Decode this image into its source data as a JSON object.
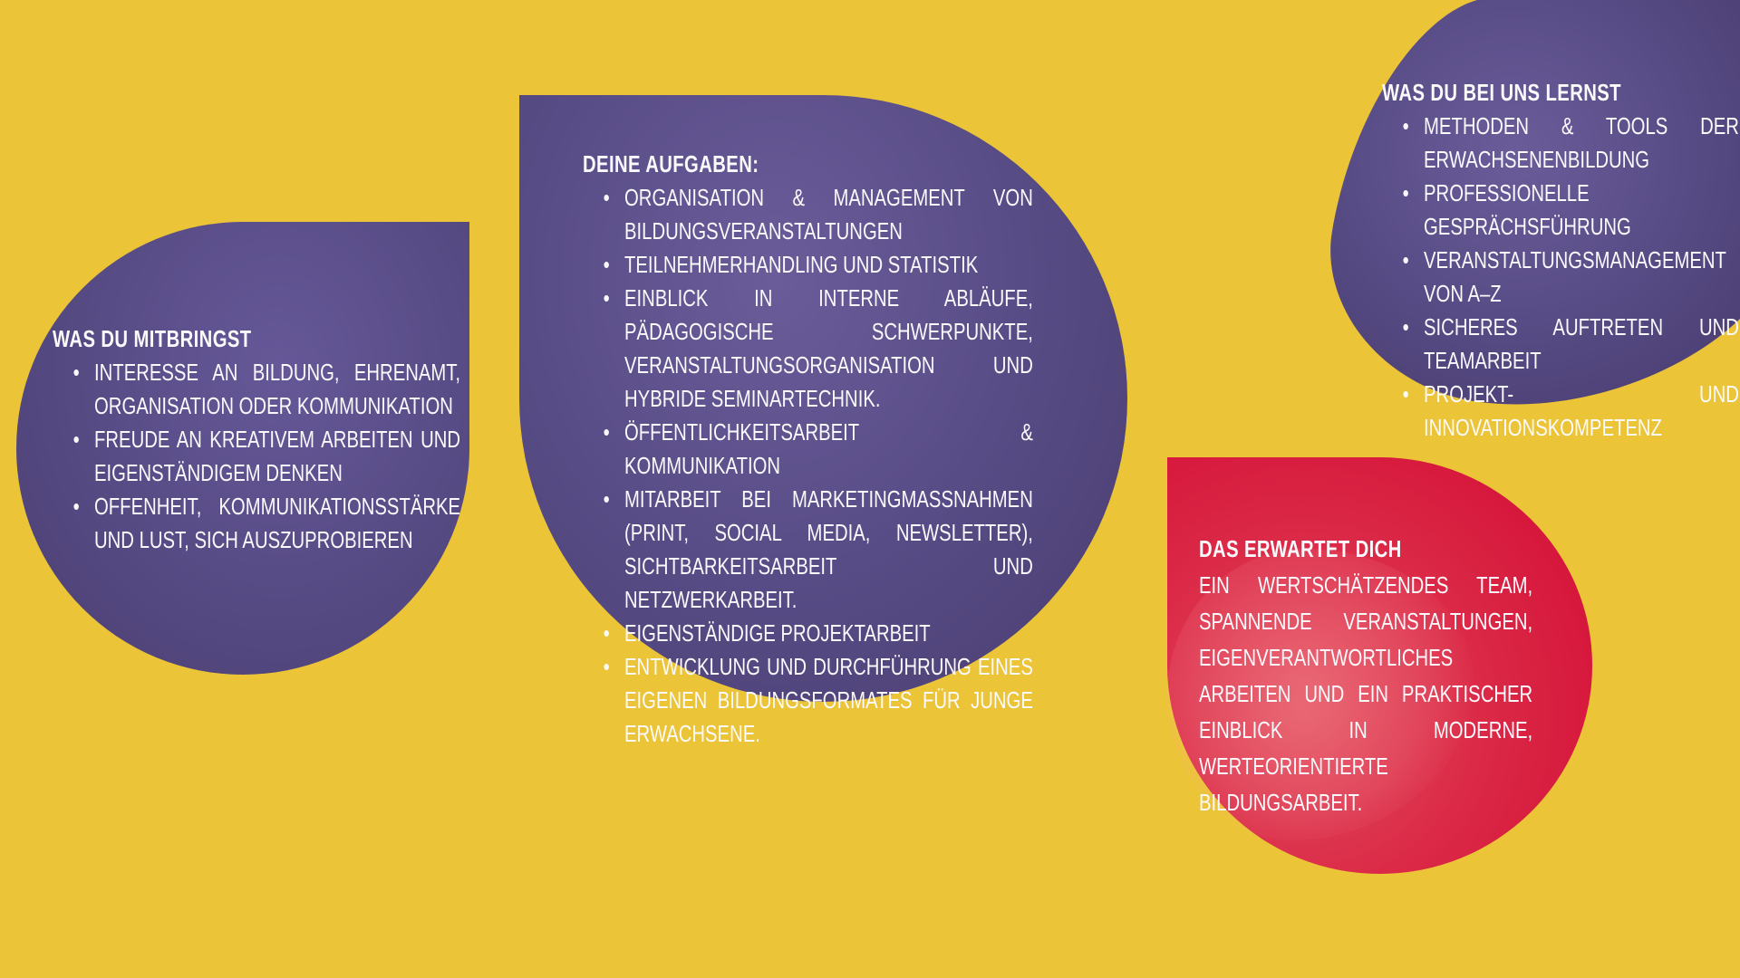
{
  "poster": {
    "background_color": "#ECC437",
    "purple_color": "#584C86",
    "red_color": "#D6173C",
    "text_color": "#FFFFFF",
    "sections": [
      {
        "title": "WAS DU MITBRINGST",
        "items": [
          "INTERESSE AN BILDUNG, EHRENAMT, ORGANISATION ODER KOMMUNIKATION",
          "FREUDE AN KREATIVEM ARBEITEN UND EIGENSTÄNDIGEM DENKEN",
          "OFFENHEIT, KOMMUNIKATIONSSTÄRKE UND LUST, SICH AUSZUPROBIEREN"
        ]
      },
      {
        "title": "DEINE AUFGABEN:",
        "items": [
          "ORGANISATION & MANAGEMENT VON BILDUNGSVERANSTALTUNGEN",
          "TEILNEHMERHANDLING UND STATISTIK",
          "EINBLICK IN INTERNE ABLÄUFE, PÄDAGOGISCHE SCHWERPUNKTE, VERANSTALTUNGSORGANISATION UND HYBRIDE SEMINARTECHNIK.",
          "ÖFFENTLICHKEITSARBEIT & KOMMUNIKATION",
          "MITARBEIT BEI MARKETINGMASSNAHMEN (PRINT, SOCIAL MEDIA, NEWSLETTER), SICHTBARKEITSARBEIT UND NETZWERKARBEIT.",
          "EIGENSTÄNDIGE PROJEKTARBEIT",
          "ENTWICKLUNG UND DURCHFÜHRUNG EINES EIGENEN BILDUNGSFORMATES FÜR JUNGE ERWACHSENE."
        ]
      },
      {
        "title": "WAS DU BEI UNS LERNST",
        "items": [
          "METHODEN & TOOLS DER ERWACHSENENBILDUNG",
          "PROFESSIONELLE GESPRÄCHSFÜHRUNG",
          "VERANSTALTUNGSMANAGEMENT VON A–Z",
          "SICHERES AUFTRETEN UND TEAMARBEIT",
          "PROJEKT- UND INNOVATIONSKOMPETENZ"
        ]
      },
      {
        "title": "DAS ERWARTET DICH",
        "paragraph": "EIN WERTSCHÄTZENDES TEAM, SPANNENDE VERANSTALTUNGEN, EIGENVERANTWORTLICHES ARBEITEN UND EIN PRAKTISCHER EINBLICK IN MODERNE, WERTEORIENTIERTE BILDUNGSARBEIT."
      }
    ]
  }
}
